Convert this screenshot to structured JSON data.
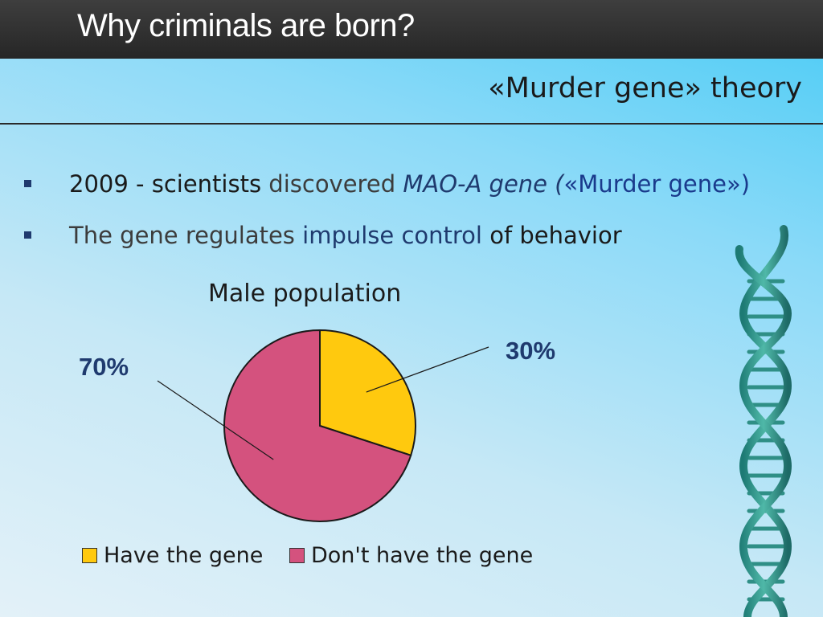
{
  "slide": {
    "title": "Why criminals are born?",
    "subtitle": "«Murder gene» theory",
    "bullets": [
      {
        "parts": [
          {
            "text": "2009 - ",
            "style": "dark"
          },
          {
            "text": "scientists ",
            "style": "dark"
          },
          {
            "text": "discovered ",
            "style": "gray"
          },
          {
            "text": "MAO-A gene (",
            "style": "navy-italic"
          },
          {
            "text": "«Murder gene»)",
            "style": "blue"
          }
        ]
      },
      {
        "parts": [
          {
            "text": "The gene regulates ",
            "style": "gray"
          },
          {
            "text": "impulse control",
            "style": "navy"
          },
          {
            "text": " of behavior",
            "style": "dark"
          }
        ]
      }
    ]
  },
  "chart_data": {
    "type": "pie",
    "title": "Male population",
    "categories": [
      "Have the gene",
      "Don't have the gene"
    ],
    "values": [
      30,
      70
    ],
    "data_labels": [
      "30%",
      "70%"
    ],
    "colors": [
      "#ffc90e",
      "#d4527e"
    ],
    "legend": "bottom"
  },
  "icons": {
    "decoration": "dna-helix-icon"
  }
}
